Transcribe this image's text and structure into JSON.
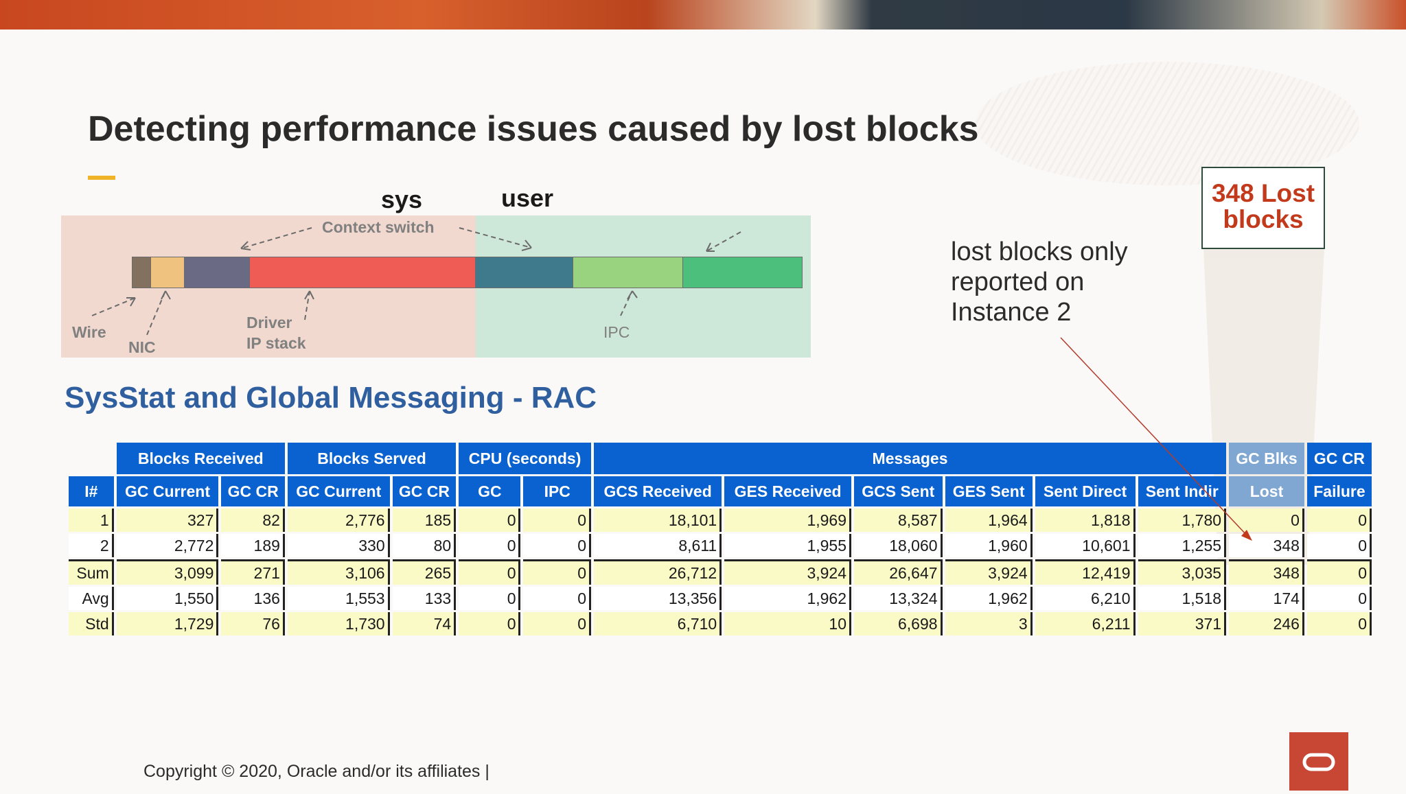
{
  "slide": {
    "title": "Detecting performance issues caused by lost blocks",
    "copyright": "Copyright © 2020, Oracle and/or its affiliates  |",
    "note": [
      "lost blocks only",
      "reported on",
      "Instance 2"
    ],
    "callout": [
      "348 Lost",
      "blocks"
    ]
  },
  "diagram": {
    "sys_label": "sys",
    "user_label": "user",
    "context_switch": "Context switch",
    "wire": "Wire",
    "nic": "NIC",
    "driver": "Driver",
    "ip_stack": "IP stack",
    "ipc": "IPC"
  },
  "table": {
    "title": "SysStat and Global Messaging - RAC",
    "groups": [
      "Blocks Received",
      "Blocks Served",
      "CPU (seconds)",
      "Messages",
      "GC Blks",
      "GC CR"
    ],
    "columns": [
      "I#",
      "GC Current",
      "GC CR",
      "GC Current",
      "GC CR",
      "GC",
      "IPC",
      "GCS Received",
      "GES Received",
      "GCS Sent",
      "GES Sent",
      "Sent Direct",
      "Sent Indir",
      "Lost",
      "Failure"
    ],
    "rows": [
      [
        "1",
        "327",
        "82",
        "2,776",
        "185",
        "0",
        "0",
        "18,101",
        "1,969",
        "8,587",
        "1,964",
        "1,818",
        "1,780",
        "0",
        "0"
      ],
      [
        "2",
        "2,772",
        "189",
        "330",
        "80",
        "0",
        "0",
        "8,611",
        "1,955",
        "18,060",
        "1,960",
        "10,601",
        "1,255",
        "348",
        "0"
      ],
      [
        "Sum",
        "3,099",
        "271",
        "3,106",
        "265",
        "0",
        "0",
        "26,712",
        "3,924",
        "26,647",
        "3,924",
        "12,419",
        "3,035",
        "348",
        "0"
      ],
      [
        "Avg",
        "1,550",
        "136",
        "1,553",
        "133",
        "0",
        "0",
        "13,356",
        "1,962",
        "13,324",
        "1,962",
        "6,210",
        "1,518",
        "174",
        "0"
      ],
      [
        "Std",
        "1,729",
        "76",
        "1,730",
        "74",
        "0",
        "0",
        "6,710",
        "10",
        "6,698",
        "3",
        "6,211",
        "371",
        "246",
        "0"
      ]
    ]
  },
  "colors": {
    "accent": "#f0b429",
    "header_blue": "#0a62d0",
    "callout_red": "#c23a1b",
    "oracle_red": "#c74634"
  }
}
